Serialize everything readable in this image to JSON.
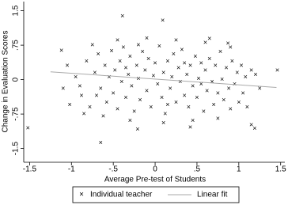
{
  "chart_data": {
    "type": "scatter",
    "xlabel": "Average Pre-test of Students",
    "ylabel": "Change in Evaluation Scores",
    "xlim": [
      -1.57,
      1.55
    ],
    "ylim": [
      -1.8,
      1.7
    ],
    "xticks": [
      -1.5,
      -1,
      {
        "value": -0.5,
        "label": "-.5"
      },
      0,
      {
        "value": 0.5,
        "label": ".5"
      },
      1,
      1.5
    ],
    "yticks": [
      -1.5,
      {
        "value": -0.75,
        "label": "-.75"
      },
      0,
      {
        "value": 0.75,
        "label": ".75"
      },
      1.5
    ],
    "series": [
      {
        "name": "Individual teacher",
        "type": "scatter",
        "color": "#111111",
        "x": [
          -0.39,
          0.09,
          -1.12,
          -1.52,
          -0.65,
          1.19,
          0.42,
          1.46,
          1.15,
          0.65,
          -0.21,
          0.87,
          -0.95,
          -0.88,
          -0.82,
          -0.78,
          -0.72,
          -0.68,
          -0.65,
          -0.6,
          -0.58,
          -0.55,
          -0.52,
          -0.5,
          -0.48,
          -0.45,
          -0.42,
          -0.4,
          -0.38,
          -0.35,
          -0.32,
          -0.3,
          -0.28,
          -0.25,
          -0.22,
          -0.2,
          -0.18,
          -0.15,
          -0.12,
          -0.1,
          -0.08,
          -0.05,
          -0.02,
          0.0,
          0.03,
          0.05,
          0.08,
          0.1,
          0.12,
          0.15,
          0.18,
          0.2,
          0.22,
          0.25,
          0.28,
          0.3,
          0.32,
          0.35,
          0.38,
          0.4,
          0.42,
          0.45,
          0.48,
          0.5,
          0.52,
          0.55,
          0.58,
          0.6,
          0.62,
          0.65,
          0.68,
          0.7,
          0.72,
          0.75,
          0.78,
          0.8,
          0.82,
          0.85,
          0.88,
          0.9,
          0.92,
          0.95,
          0.98,
          1.0,
          1.03,
          1.05,
          1.08,
          1.1,
          1.15,
          -1.02,
          -1.05,
          -0.9,
          -0.85,
          -0.75,
          -0.62,
          -0.45,
          -0.3,
          -0.1,
          0.1,
          0.25,
          0.45,
          0.6,
          0.75,
          0.9,
          1.2,
          1.25,
          -1.1,
          -0.7,
          -0.35,
          0.15,
          0.55,
          0.35,
          -0.2
        ],
        "values": [
          1.38,
          1.28,
          0.63,
          -1.06,
          -1.38,
          -1.07,
          -1.04,
          0.2,
          -0.99,
          0.89,
          -1.09,
          0.78,
          0.05,
          -0.35,
          0.4,
          -0.6,
          0.15,
          0.55,
          -0.2,
          0.3,
          -0.5,
          0.05,
          0.62,
          -0.3,
          0.2,
          -0.65,
          0.4,
          -0.05,
          0.7,
          -0.4,
          0.1,
          0.5,
          -0.15,
          -0.7,
          0.3,
          0.02,
          -0.45,
          0.6,
          0.2,
          -0.25,
          0.45,
          -0.6,
          0.08,
          0.35,
          -0.1,
          0.72,
          -0.4,
          0.15,
          -0.75,
          0.4,
          -0.2,
          0.05,
          0.55,
          -0.5,
          0.25,
          -0.05,
          0.65,
          -0.35,
          0.1,
          -0.6,
          0.3,
          -0.15,
          0.5,
          -0.4,
          0.02,
          0.35,
          -0.7,
          0.2,
          -0.25,
          0.45,
          -0.05,
          -0.55,
          0.3,
          -0.3,
          0.6,
          0.0,
          -0.45,
          0.25,
          -0.2,
          -0.65,
          0.4,
          -0.1,
          0.15,
          -0.5,
          0.3,
          -0.3,
          0.05,
          -0.6,
          0.2,
          -0.55,
          0.3,
          -0.15,
          -0.75,
          0.75,
          -0.8,
          0.85,
          -0.9,
          0.9,
          -0.95,
          0.85,
          -0.9,
          0.8,
          -0.85,
          0.7,
          0.1,
          -0.2,
          -0.2,
          -0.35,
          0.25,
          -0.55,
          -0.1,
          0.35,
          0.75
        ]
      },
      {
        "name": "Linear fit",
        "type": "line",
        "color": "#aaaaaa",
        "x": [
          -1.25,
          1.45
        ],
        "values": [
          0.17,
          -0.17
        ]
      }
    ]
  }
}
